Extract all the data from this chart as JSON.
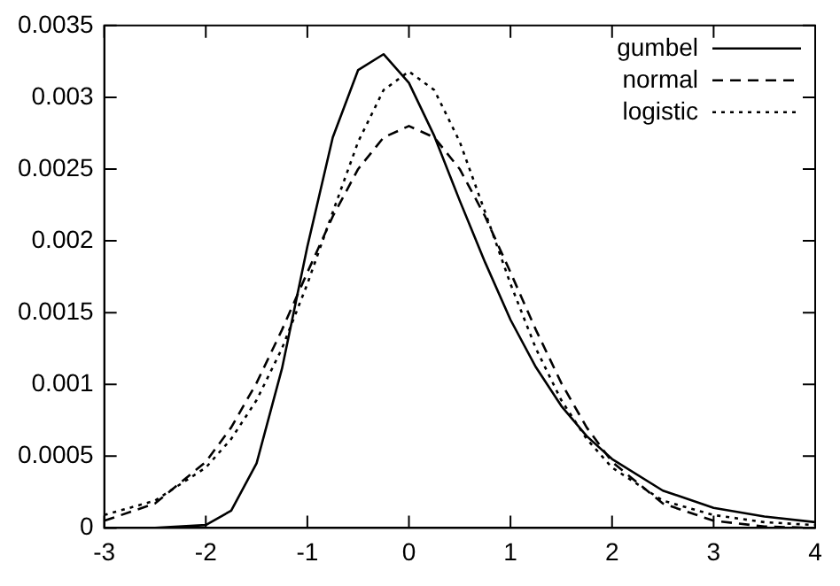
{
  "chart_data": {
    "type": "line",
    "x": [
      -3,
      -2.5,
      -2,
      -1.75,
      -1.5,
      -1.25,
      -1,
      -0.75,
      -0.5,
      -0.25,
      0,
      0.25,
      0.5,
      0.75,
      1,
      1.25,
      1.5,
      1.75,
      2,
      2.5,
      3,
      3.5,
      4
    ],
    "series": [
      {
        "name": "gumbel",
        "color": "#000000",
        "line_style": "solid",
        "values": [
          0,
          0,
          2e-05,
          0.00012,
          0.00045,
          0.00111,
          0.00196,
          0.00272,
          0.00319,
          0.0033,
          0.0031,
          0.00273,
          0.00228,
          0.00185,
          0.00145,
          0.00112,
          0.00085,
          0.00064,
          0.00048,
          0.00026,
          0.00014,
          8e-05,
          4e-05
        ]
      },
      {
        "name": "normal",
        "color": "#000000",
        "line_style": "dashed",
        "values": [
          5e-05,
          0.00017,
          0.00046,
          0.0007,
          0.00101,
          0.00138,
          0.00178,
          0.00217,
          0.0025,
          0.00272,
          0.0028,
          0.00272,
          0.0025,
          0.00217,
          0.00178,
          0.00138,
          0.00101,
          0.0007,
          0.00046,
          0.00017,
          5e-05,
          1e-05,
          0
        ]
      },
      {
        "name": "logistic",
        "color": "#000000",
        "line_style": "dotted",
        "values": [
          9e-05,
          0.00019,
          0.00042,
          0.00062,
          0.00089,
          0.00125,
          0.0017,
          0.0022,
          0.00269,
          0.00305,
          0.00318,
          0.00305,
          0.00269,
          0.0022,
          0.0017,
          0.00125,
          0.00089,
          0.00062,
          0.00042,
          0.00019,
          9e-05,
          4e-05,
          2e-05
        ]
      }
    ],
    "xlim": [
      -3,
      4
    ],
    "xticks": [
      -3,
      -2,
      -1,
      0,
      1,
      2,
      3,
      4
    ],
    "ylim": [
      0,
      0.0035
    ],
    "yticks": [
      0,
      0.0005,
      0.001,
      0.0015,
      0.002,
      0.0025,
      0.003,
      0.0035
    ],
    "grid": false,
    "legend": "top right",
    "marker": "none"
  }
}
